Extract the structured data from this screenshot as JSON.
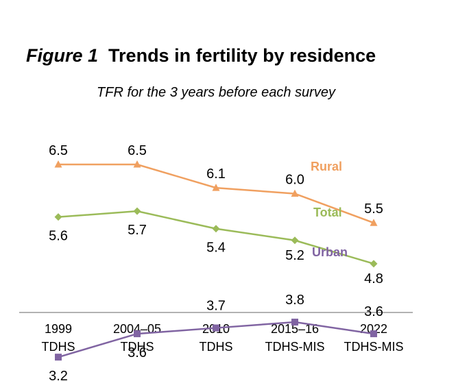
{
  "title": {
    "figure_label": "Figure 1",
    "text": "Trends in fertility by residence"
  },
  "chart_data": {
    "type": "line",
    "title": "Figure 1 Trends in fertility by residence",
    "subtitle": "TFR for the 3 years before each survey",
    "categories": [
      [
        "1999",
        "TDHS"
      ],
      [
        "2004–05",
        "TDHS"
      ],
      [
        "2010",
        "TDHS"
      ],
      [
        "2015–16",
        "TDHS-MIS"
      ],
      [
        "2022",
        "TDHS-MIS"
      ]
    ],
    "ylim": [
      2.0,
      7.0
    ],
    "grid": false,
    "series": [
      {
        "name": "Rural",
        "values": [
          6.5,
          6.5,
          6.1,
          6.0,
          5.5
        ],
        "labels": [
          "6.5",
          "6.5",
          "6.1",
          "6.0",
          "5.5"
        ],
        "color": "#f0a060",
        "marker": "triangle",
        "label_side": "above"
      },
      {
        "name": "Total",
        "values": [
          5.6,
          5.7,
          5.4,
          5.2,
          4.8
        ],
        "labels": [
          "5.6",
          "5.7",
          "5.4",
          "5.2",
          "4.8"
        ],
        "color": "#9bbb59",
        "marker": "diamond",
        "label_side": "below"
      },
      {
        "name": "Urban",
        "values": [
          3.2,
          3.6,
          3.7,
          3.8,
          3.6
        ],
        "labels": [
          "3.2",
          "3.6",
          "3.7",
          "3.8",
          "3.6"
        ],
        "color": "#8064a2",
        "marker": "square",
        "label_side": "mixed"
      }
    ]
  }
}
